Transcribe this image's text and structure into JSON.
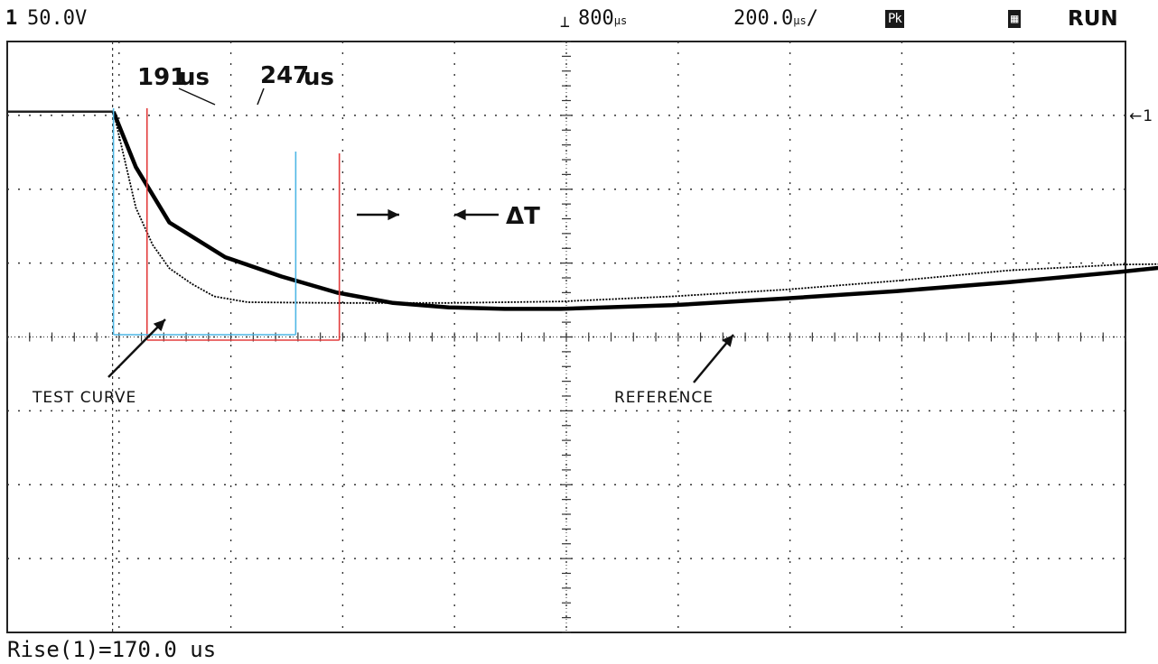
{
  "header": {
    "channel_badge": "1",
    "channel_scale": "50.0V",
    "trigger_level": "800",
    "time_per_div": "200.0",
    "acq_mode": "Pk",
    "run_status": "RUN"
  },
  "measurement": "Rise(1)=170.0 us",
  "colors": {
    "trace": "#000000",
    "marker_test": "#4fb7e6",
    "marker_ref": "#e33d3d",
    "grid": "#333333"
  },
  "chart_data": {
    "type": "line",
    "title": "",
    "xlabel": "",
    "ylabel": "",
    "grid": "on",
    "divisions": {
      "x": 10,
      "y": 8
    },
    "xlim_div": [
      0,
      10
    ],
    "ylim_div": [
      0,
      8
    ],
    "series": [
      {
        "name": "REFERENCE",
        "points_div": [
          [
            0,
            7.05
          ],
          [
            0.2,
            6.3
          ],
          [
            0.5,
            5.55
          ],
          [
            1.0,
            5.08
          ],
          [
            1.5,
            4.82
          ],
          [
            2.0,
            4.6
          ],
          [
            2.5,
            4.46
          ],
          [
            3.0,
            4.4
          ],
          [
            3.5,
            4.38
          ],
          [
            4.0,
            4.38
          ],
          [
            5.0,
            4.43
          ],
          [
            6.0,
            4.52
          ],
          [
            7.0,
            4.62
          ],
          [
            8.0,
            4.74
          ],
          [
            9.0,
            4.88
          ],
          [
            10.0,
            5.04
          ]
        ]
      },
      {
        "name": "TEST CURVE",
        "points_div": [
          [
            0,
            7.05
          ],
          [
            0.1,
            6.4
          ],
          [
            0.2,
            5.75
          ],
          [
            0.35,
            5.25
          ],
          [
            0.5,
            4.93
          ],
          [
            0.7,
            4.72
          ],
          [
            0.9,
            4.55
          ],
          [
            1.2,
            4.47
          ],
          [
            2.0,
            4.46
          ],
          [
            3.0,
            4.46
          ],
          [
            4.0,
            4.48
          ],
          [
            5.0,
            4.55
          ],
          [
            6.0,
            4.64
          ],
          [
            7.0,
            4.76
          ],
          [
            8.0,
            4.9
          ],
          [
            9.0,
            4.98
          ],
          [
            10.0,
            5.0
          ]
        ]
      }
    ],
    "markers": [
      {
        "label": "191",
        "unit": "us",
        "x_div": 0.95,
        "series": "TEST CURVE"
      },
      {
        "label": "247",
        "unit": "us",
        "x_div": 1.25,
        "series": "REFERENCE"
      }
    ],
    "marker_ends": [
      {
        "series": "TEST CURVE",
        "x_div": 2.58
      },
      {
        "series": "REFERENCE",
        "x_div": 2.97
      }
    ],
    "annotations": {
      "delta": "ΔT",
      "test_label": "TEST CURVE",
      "ref_label": "REFERENCE"
    }
  }
}
